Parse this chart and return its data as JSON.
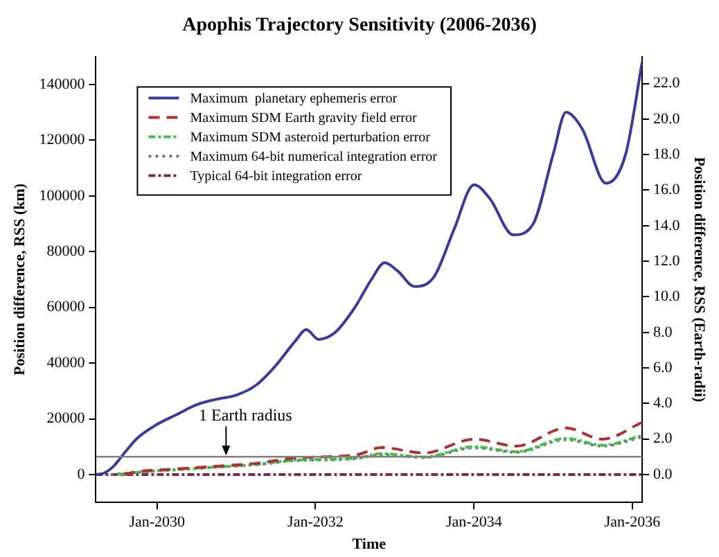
{
  "chart_data": {
    "type": "line",
    "title": "Apophis Trajectory Sensitivity (2006-2036)",
    "xlabel": "Time",
    "ylabel": "Position difference, RSS (km)",
    "y2label": "Position difference, RSS (Earth-radii)",
    "xlim": [
      "2029-03-25",
      "2036-02-15"
    ],
    "xticks": [
      {
        "value": "2030-01-01",
        "label": "Jan-2030"
      },
      {
        "value": "2032-01-01",
        "label": "Jan-2032"
      },
      {
        "value": "2034-01-01",
        "label": "Jan-2034"
      },
      {
        "value": "2036-01-01",
        "label": "Jan-2036"
      }
    ],
    "ylim": [
      -10000,
      150000
    ],
    "yticks": [
      0,
      20000,
      40000,
      60000,
      80000,
      100000,
      120000,
      140000
    ],
    "y2lim": [
      -1.568,
      23.518
    ],
    "y2ticks": [
      {
        "value": 0,
        "label": "0.0"
      },
      {
        "value": 2,
        "label": "2.0"
      },
      {
        "value": 4,
        "label": "4.0"
      },
      {
        "value": 6,
        "label": "6.0"
      },
      {
        "value": 8,
        "label": "8.0"
      },
      {
        "value": 10,
        "label": "10.0"
      },
      {
        "value": 12,
        "label": "12.0"
      },
      {
        "value": 14,
        "label": "14.0"
      },
      {
        "value": 16,
        "label": "16.0"
      },
      {
        "value": 18,
        "label": "18.0"
      },
      {
        "value": 20,
        "label": "20.0"
      },
      {
        "value": 22,
        "label": "22.0"
      }
    ],
    "grid": false,
    "legend": "top left",
    "marker": "none",
    "ref_lines": [
      {
        "axis": "y",
        "value": 6378,
        "color": "#808080"
      }
    ],
    "annotations": [
      {
        "text": "1 Earth radius",
        "x": "2030-11-15",
        "y": 6378
      }
    ],
    "series": [
      {
        "name": "Maximum  planetary ephemeris error",
        "color": "#3a3a9a",
        "line_style": "solid",
        "x": [
          "2029-03-25",
          "2029-05-01",
          "2029-06-15",
          "2029-08-01",
          "2029-10-01",
          "2030-01-01",
          "2030-04-01",
          "2030-07-01",
          "2030-10-01",
          "2031-01-01",
          "2031-04-01",
          "2031-07-01",
          "2031-10-01",
          "2031-11-20",
          "2032-01-15",
          "2032-04-01",
          "2032-07-01",
          "2032-09-15",
          "2032-11-15",
          "2033-01-15",
          "2033-04-01",
          "2033-07-01",
          "2033-10-01",
          "2034-01-01",
          "2034-03-15",
          "2034-07-01",
          "2034-10-01",
          "2035-01-01",
          "2035-03-01",
          "2035-05-15",
          "2035-09-01",
          "2035-12-01",
          "2036-02-15"
        ],
        "values": [
          0,
          500,
          3000,
          7500,
          13000,
          18000,
          21500,
          25000,
          27000,
          28500,
          32000,
          39000,
          48000,
          52000,
          48500,
          51000,
          60000,
          70000,
          76000,
          73000,
          67500,
          71000,
          88000,
          104000,
          99000,
          86000,
          90000,
          115000,
          130000,
          124000,
          104500,
          115000,
          148000
        ]
      },
      {
        "name": "Maximum SDM Earth gravity field error",
        "color": "#b03030",
        "line_style": "dashed",
        "x": [
          "2029-08-01",
          "2029-10-01",
          "2030-04-01",
          "2030-10-01",
          "2031-04-01",
          "2031-10-01",
          "2032-04-01",
          "2032-07-15",
          "2032-11-01",
          "2033-05-15",
          "2034-01-01",
          "2034-07-15",
          "2035-03-01",
          "2035-08-15",
          "2036-02-15"
        ],
        "values": [
          0,
          1000,
          2000,
          3000,
          4000,
          6000,
          6500,
          7200,
          9700,
          7700,
          12700,
          10200,
          16700,
          12700,
          18700
        ]
      },
      {
        "name": "Maximum SDM asteroid perturbation error",
        "color": "#40c040",
        "line_style": "dashdot",
        "x": [
          "2029-07-01",
          "2029-10-01",
          "2030-04-01",
          "2030-10-01",
          "2031-04-01",
          "2031-10-01",
          "2032-04-01",
          "2032-07-15",
          "2032-11-01",
          "2033-05-15",
          "2034-01-01",
          "2034-07-15",
          "2035-03-01",
          "2035-08-15",
          "2036-02-15"
        ],
        "values": [
          0,
          800,
          1800,
          2700,
          3600,
          5200,
          5500,
          6000,
          7500,
          6300,
          10000,
          8200,
          13000,
          10500,
          14000
        ]
      },
      {
        "name": "Maximum 64-bit numerical integration error",
        "color": "#707090",
        "line_style": "dotted",
        "x": [
          "2029-06-01",
          "2029-10-01",
          "2030-04-01",
          "2030-10-01",
          "2031-04-01",
          "2031-10-01",
          "2032-04-01",
          "2032-07-15",
          "2032-11-01",
          "2033-05-15",
          "2034-01-01",
          "2034-07-15",
          "2035-03-01",
          "2035-08-15",
          "2036-02-15"
        ],
        "values": [
          0,
          800,
          1700,
          2600,
          3500,
          5000,
          5300,
          5800,
          7200,
          6100,
          9600,
          8000,
          12500,
          10200,
          13500
        ]
      },
      {
        "name": "Typical 64-bit integration error",
        "color": "#7a2a4a",
        "line_style": "dashdot",
        "x": [
          "2029-03-25",
          "2036-02-15"
        ],
        "values": [
          0,
          0
        ]
      }
    ]
  }
}
